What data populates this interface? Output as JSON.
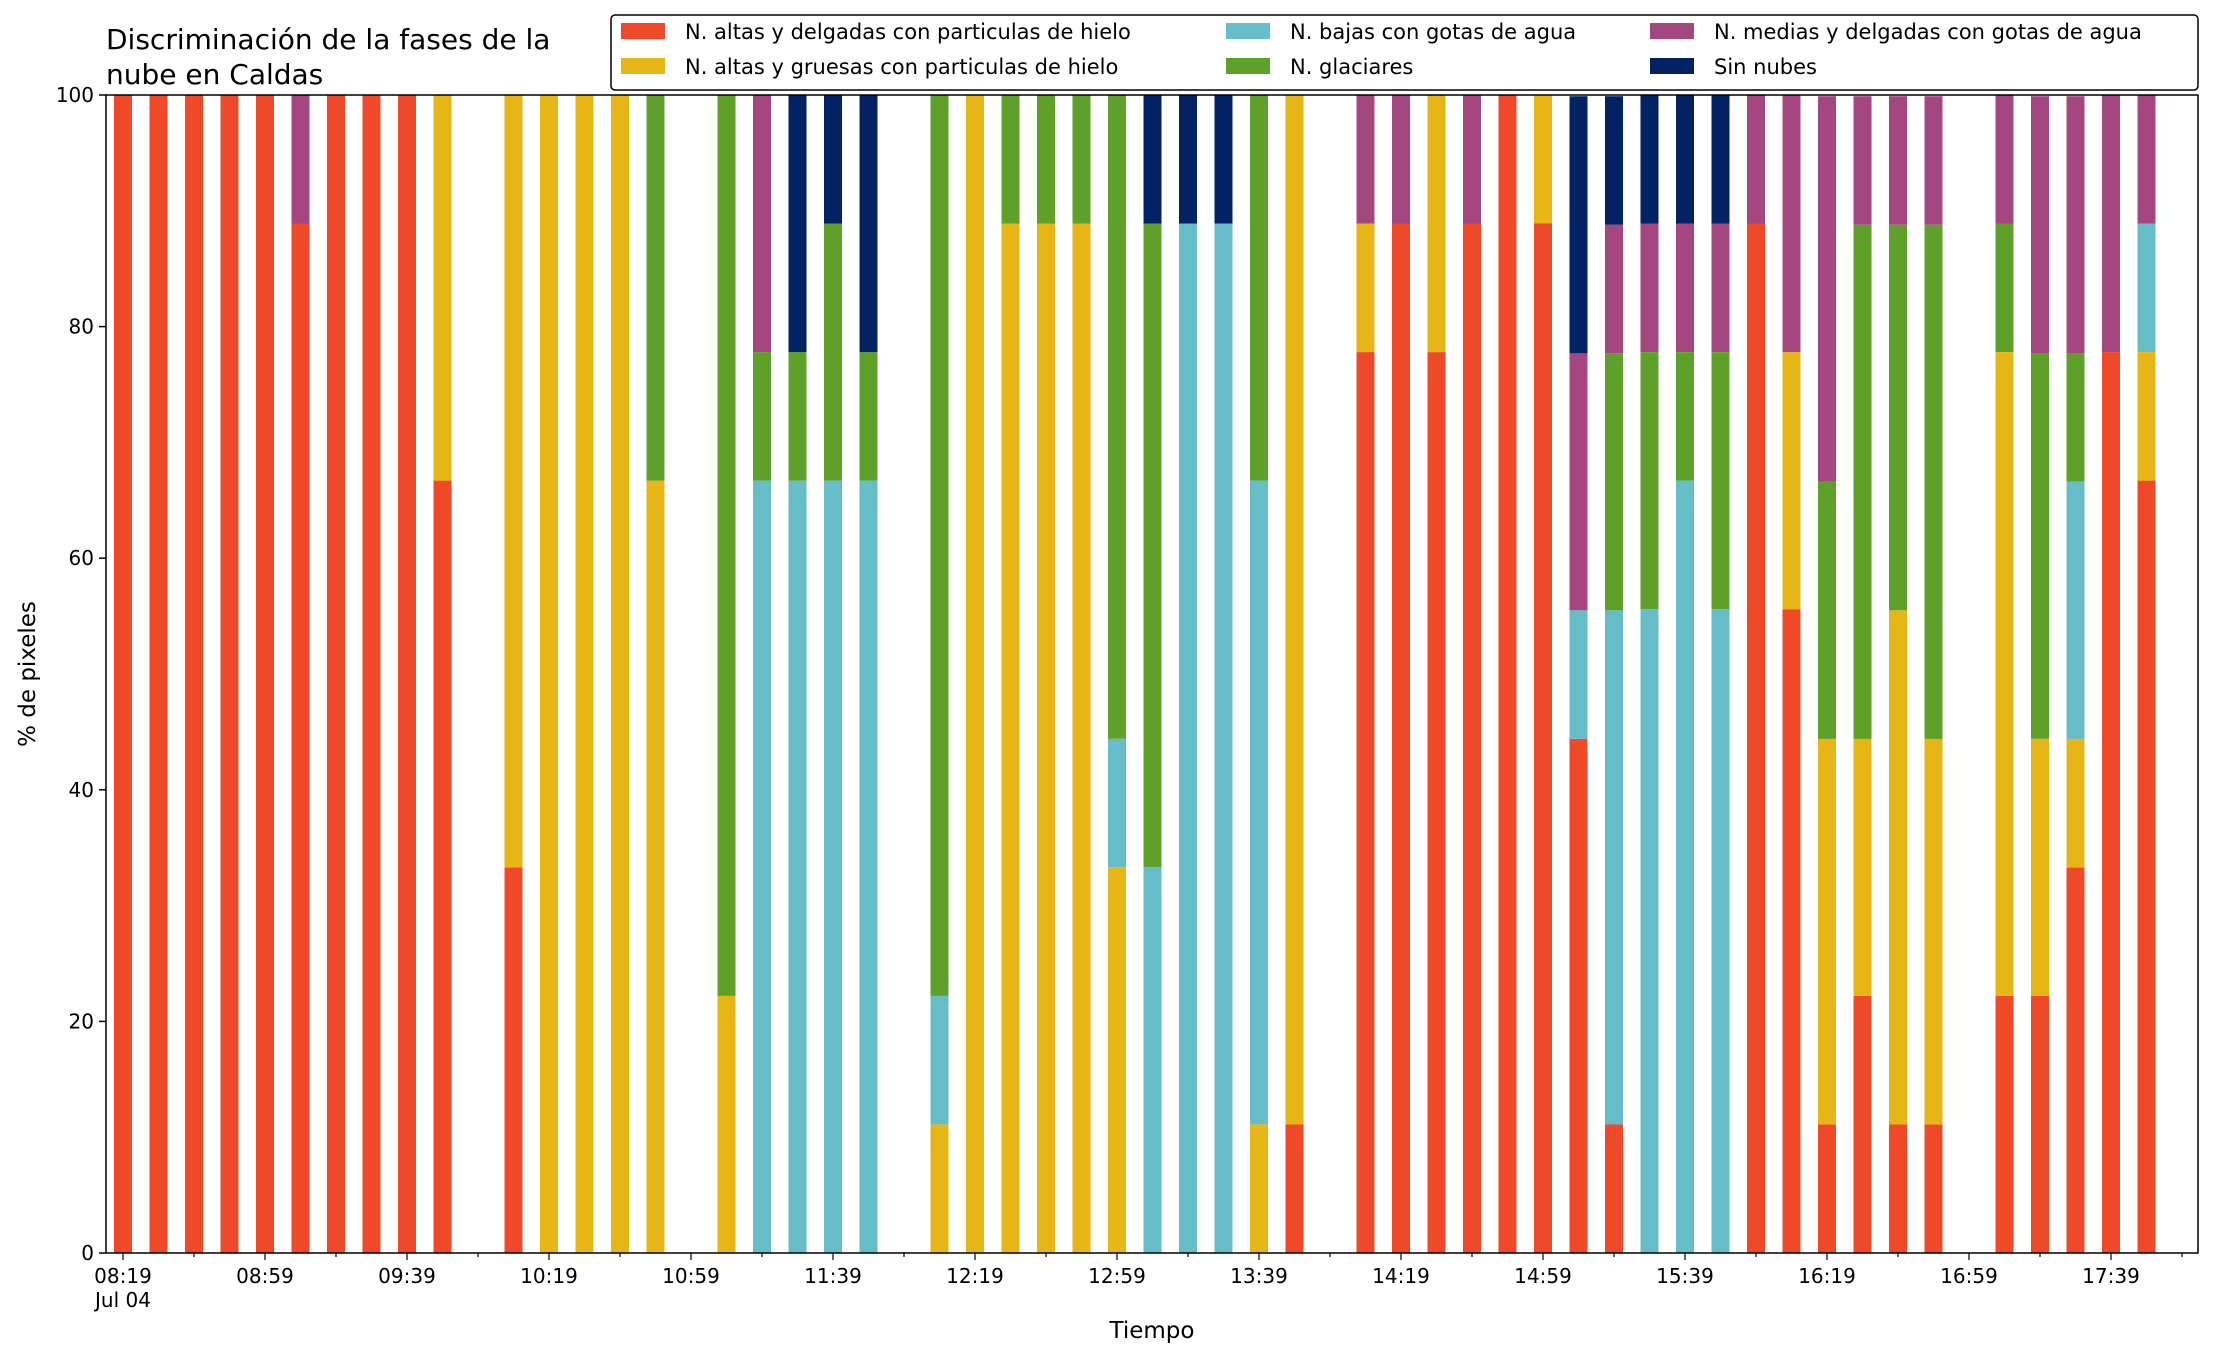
{
  "chart_data": {
    "type": "bar",
    "stacked": true,
    "title": "Discriminación de la fases de la\nnube en Caldas",
    "xlabel": "Tiempo",
    "ylabel": "% de pixeles",
    "ylim": [
      0,
      100
    ],
    "yticks": [
      0,
      20,
      40,
      60,
      80,
      100
    ],
    "grid": false,
    "legend_position": "top-right",
    "xtick_labels": [
      "08:19\nJul 04",
      "08:59",
      "09:39",
      "10:19",
      "10:59",
      "11:39",
      "12:19",
      "12:59",
      "13:39",
      "14:19",
      "14:59",
      "15:39",
      "16:19",
      "16:59",
      "17:39"
    ],
    "series": [
      {
        "name": "N. altas y delgadas con particulas de hielo",
        "color": "#ee4a2a"
      },
      {
        "name": "N. altas y gruesas con particulas de hielo",
        "color": "#e5b616"
      },
      {
        "name": "N. bajas con gotas de agua",
        "color": "#66bdc8"
      },
      {
        "name": "N. glaciares",
        "color": "#5fa02b"
      },
      {
        "name": "N. medias y delgadas con gotas de agua",
        "color": "#a4467f"
      },
      {
        "name": "Sin nubes",
        "color": "#032264"
      }
    ],
    "categories": [
      "08:19",
      "08:29",
      "08:39",
      "08:49",
      "08:59",
      "09:09",
      "09:19",
      "09:29",
      "09:39",
      "09:49",
      "09:59",
      "10:09",
      "10:19",
      "10:29",
      "10:39",
      "10:49",
      "10:59",
      "11:09",
      "11:19",
      "11:29",
      "11:39",
      "11:49",
      "11:59",
      "12:09",
      "12:19",
      "12:29",
      "12:39",
      "12:49",
      "12:59",
      "13:09",
      "13:19",
      "13:29",
      "13:39",
      "13:49",
      "13:59",
      "14:09",
      "14:19",
      "14:29",
      "14:39",
      "14:49",
      "14:59",
      "15:09",
      "15:19",
      "15:29",
      "15:39",
      "15:49",
      "15:59",
      "16:09",
      "16:19",
      "16:29",
      "16:39",
      "16:49",
      "16:59",
      "17:09",
      "17:19",
      "17:29",
      "17:39",
      "17:49"
    ],
    "bars": [
      {
        "t": "08:19",
        "segments": [
          100,
          0,
          0,
          0,
          0,
          0
        ]
      },
      {
        "t": "08:29",
        "segments": [
          100,
          0,
          0,
          0,
          0,
          0
        ]
      },
      {
        "t": "08:39",
        "segments": [
          100,
          0,
          0,
          0,
          0,
          0
        ]
      },
      {
        "t": "08:49",
        "segments": [
          100,
          0,
          0,
          0,
          0,
          0
        ]
      },
      {
        "t": "08:59",
        "segments": [
          100,
          0,
          0,
          0,
          0,
          0
        ]
      },
      {
        "t": "09:09",
        "segments": [
          88.9,
          0,
          0,
          0,
          11.1,
          0
        ]
      },
      {
        "t": "09:19",
        "segments": [
          100,
          0,
          0,
          0,
          0,
          0
        ]
      },
      {
        "t": "09:29",
        "segments": [
          100,
          0,
          0,
          0,
          0,
          0
        ]
      },
      {
        "t": "09:39",
        "segments": [
          100,
          0,
          0,
          0,
          0,
          0
        ]
      },
      {
        "t": "09:49",
        "segments": [
          66.7,
          33.3,
          0,
          0,
          0,
          0
        ]
      },
      {
        "t": "10:09",
        "segments": [
          33.3,
          66.7,
          0,
          0,
          0,
          0
        ]
      },
      {
        "t": "10:19",
        "segments": [
          0,
          100,
          0,
          0,
          0,
          0
        ]
      },
      {
        "t": "10:29",
        "segments": [
          0,
          100,
          0,
          0,
          0,
          0
        ]
      },
      {
        "t": "10:39",
        "segments": [
          0,
          100,
          0,
          0,
          0,
          0
        ]
      },
      {
        "t": "10:49",
        "segments": [
          0,
          66.7,
          0,
          33.3,
          0,
          0
        ]
      },
      {
        "t": "11:09",
        "segments": [
          0,
          22.2,
          0,
          77.8,
          0,
          0
        ]
      },
      {
        "t": "11:19",
        "segments": [
          0,
          0,
          66.7,
          11.1,
          22.2,
          0
        ]
      },
      {
        "t": "11:29",
        "segments": [
          0,
          0,
          66.7,
          11.1,
          0,
          22.2
        ]
      },
      {
        "t": "11:39",
        "segments": [
          0,
          0,
          66.7,
          22.2,
          0,
          11.1
        ]
      },
      {
        "t": "11:49",
        "segments": [
          0,
          0,
          66.7,
          11.1,
          0,
          22.2
        ]
      },
      {
        "t": "12:09",
        "segments": [
          0,
          11.1,
          11.1,
          77.8,
          0,
          0
        ]
      },
      {
        "t": "12:19",
        "segments": [
          0,
          100,
          0,
          0,
          0,
          0
        ]
      },
      {
        "t": "12:29",
        "segments": [
          0,
          88.9,
          0,
          11.1,
          0,
          0
        ]
      },
      {
        "t": "12:39",
        "segments": [
          0,
          88.9,
          0,
          11.1,
          0,
          0
        ]
      },
      {
        "t": "12:49",
        "segments": [
          0,
          88.9,
          0,
          11.1,
          0,
          0
        ]
      },
      {
        "t": "12:59",
        "segments": [
          0,
          33.3,
          11.1,
          55.6,
          0,
          0
        ]
      },
      {
        "t": "13:09",
        "segments": [
          0,
          0,
          33.3,
          55.6,
          0,
          11.1
        ]
      },
      {
        "t": "13:19",
        "segments": [
          0,
          0,
          88.9,
          0,
          0,
          11.1
        ]
      },
      {
        "t": "13:29",
        "segments": [
          0,
          0,
          88.9,
          0,
          0,
          11.1
        ]
      },
      {
        "t": "13:39",
        "segments": [
          0,
          11.1,
          55.6,
          33.3,
          0,
          0
        ]
      },
      {
        "t": "13:49",
        "segments": [
          11.1,
          88.9,
          0,
          0,
          0,
          0
        ]
      },
      {
        "t": "14:09",
        "segments": [
          77.8,
          11.1,
          0,
          0,
          11.1,
          0
        ]
      },
      {
        "t": "14:19",
        "segments": [
          88.9,
          0,
          0,
          0,
          11.1,
          0
        ]
      },
      {
        "t": "14:29",
        "segments": [
          77.8,
          22.2,
          0,
          0,
          0,
          0
        ]
      },
      {
        "t": "14:39",
        "segments": [
          88.9,
          0,
          0,
          0,
          11.1,
          0
        ]
      },
      {
        "t": "14:49",
        "segments": [
          100,
          0,
          0,
          0,
          0,
          0
        ]
      },
      {
        "t": "14:59",
        "segments": [
          88.9,
          11.1,
          0,
          0,
          0,
          0
        ]
      },
      {
        "t": "15:09",
        "segments": [
          44.4,
          0,
          11.1,
          0,
          22.2,
          22.2
        ]
      },
      {
        "t": "15:19",
        "segments": [
          11.1,
          0,
          44.4,
          22.2,
          11.1,
          11.1
        ]
      },
      {
        "t": "15:29",
        "segments": [
          0,
          0,
          55.6,
          22.2,
          11.1,
          11.1
        ]
      },
      {
        "t": "15:39",
        "segments": [
          0,
          0,
          66.7,
          11.1,
          11.1,
          11.1
        ]
      },
      {
        "t": "15:49",
        "segments": [
          0,
          0,
          55.6,
          22.2,
          11.1,
          11.1
        ]
      },
      {
        "t": "15:59",
        "segments": [
          88.9,
          0,
          0,
          0,
          11.1,
          0
        ]
      },
      {
        "t": "16:09",
        "segments": [
          55.6,
          22.2,
          0,
          0,
          22.2,
          0
        ]
      },
      {
        "t": "16:19",
        "segments": [
          11.1,
          33.3,
          0,
          22.2,
          33.3,
          0
        ]
      },
      {
        "t": "16:29",
        "segments": [
          22.2,
          22.2,
          0,
          44.4,
          11.1,
          0
        ]
      },
      {
        "t": "16:39",
        "segments": [
          11.1,
          44.4,
          0,
          33.3,
          11.1,
          0
        ]
      },
      {
        "t": "16:49",
        "segments": [
          11.1,
          33.3,
          0,
          44.4,
          11.1,
          0
        ]
      },
      {
        "t": "17:09",
        "segments": [
          22.2,
          55.6,
          0,
          11.1,
          11.1,
          0
        ]
      },
      {
        "t": "17:19",
        "segments": [
          22.2,
          22.2,
          0,
          33.3,
          22.2,
          0
        ]
      },
      {
        "t": "17:29",
        "segments": [
          33.3,
          11.1,
          22.2,
          11.1,
          22.2,
          0
        ]
      },
      {
        "t": "17:39",
        "segments": [
          77.8,
          0,
          0,
          0,
          22.2,
          0
        ]
      },
      {
        "t": "17:49",
        "segments": [
          66.7,
          11.1,
          11.1,
          0,
          11.1,
          0
        ]
      }
    ]
  }
}
